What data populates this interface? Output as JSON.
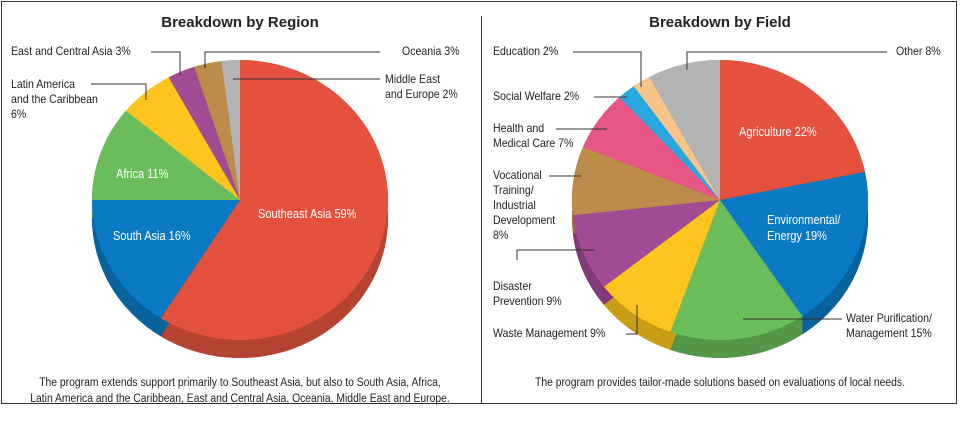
{
  "chart_data": [
    {
      "type": "pie",
      "title": "Breakdown by Region",
      "caption": "The program extends support primarily to Southeast Asia, but also to South Asia, Africa, Latin America and the Caribbean, East and Central Asia, Oceania, Middle East and Europe.",
      "caption_lines": [
        "The program extends support primarily to Southeast Asia, but also to South Asia, Africa,",
        "Latin America and the Caribbean, East and Central Asia, Oceania, Middle East and Europe."
      ],
      "slices": [
        {
          "label": "Southeast Asia 59%",
          "name": "Southeast Asia",
          "value": 59,
          "color": "#e4523f"
        },
        {
          "label": "South Asia 16%",
          "name": "South Asia",
          "value": 16,
          "color": "#0a7ac4"
        },
        {
          "label": "Africa 11%",
          "name": "Africa",
          "value": 11,
          "color": "#6abd5a"
        },
        {
          "label_lines": [
            "Latin America",
            "and the Caribbean",
            "6%"
          ],
          "name": "Latin America and the Caribbean",
          "value": 6,
          "color": "#fdc41d"
        },
        {
          "label": "East and Central Asia 3%",
          "name": "East and Central Asia",
          "value": 3,
          "color": "#a34a94"
        },
        {
          "label": "Oceania 3%",
          "name": "Oceania",
          "value": 3,
          "color": "#bd8b4a"
        },
        {
          "label_lines": [
            "Middle East",
            "and Europe 2%"
          ],
          "name": "Middle East and Europe",
          "value": 2,
          "color": "#b3b3b3"
        }
      ]
    },
    {
      "type": "pie",
      "title": "Breakdown by Field",
      "caption": "The program provides tailor-made solutions based on evaluations of local needs.",
      "slices": [
        {
          "label": "Agriculture 22%",
          "name": "Agriculture",
          "value": 22,
          "color": "#e4523f"
        },
        {
          "label_lines": [
            "Environmental/",
            "Energy 19%"
          ],
          "name": "Environmental/Energy",
          "value": 19,
          "color": "#0a7ac4"
        },
        {
          "label_lines": [
            "Water Purification/",
            "Management 15%"
          ],
          "name": "Water Purification/Management",
          "value": 15,
          "color": "#6abd5a"
        },
        {
          "label": "Waste Management 9%",
          "name": "Waste Management",
          "value": 9,
          "color": "#fdc41d"
        },
        {
          "label_lines": [
            "Disaster",
            "Prevention 9%"
          ],
          "name": "Disaster Prevention",
          "value": 9,
          "color": "#a34a94"
        },
        {
          "label_lines": [
            "Vocational",
            "Training/",
            "Industrial",
            "Development",
            "8%"
          ],
          "name": "Vocational Training/Industrial Development",
          "value": 8,
          "color": "#bd8b4a"
        },
        {
          "label_lines": [
            "Health and",
            "Medical Care 7%"
          ],
          "name": "Health and Medical Care",
          "value": 7,
          "color": "#e65583"
        },
        {
          "label": "Social Welfare 2%",
          "name": "Social Welfare",
          "value": 2,
          "color": "#29a8e0"
        },
        {
          "label": "Education 2%",
          "name": "Education",
          "value": 2,
          "color": "#f7c489"
        },
        {
          "label": "Other 8%",
          "name": "Other",
          "value": 8,
          "color": "#b3b3b3"
        }
      ]
    }
  ]
}
